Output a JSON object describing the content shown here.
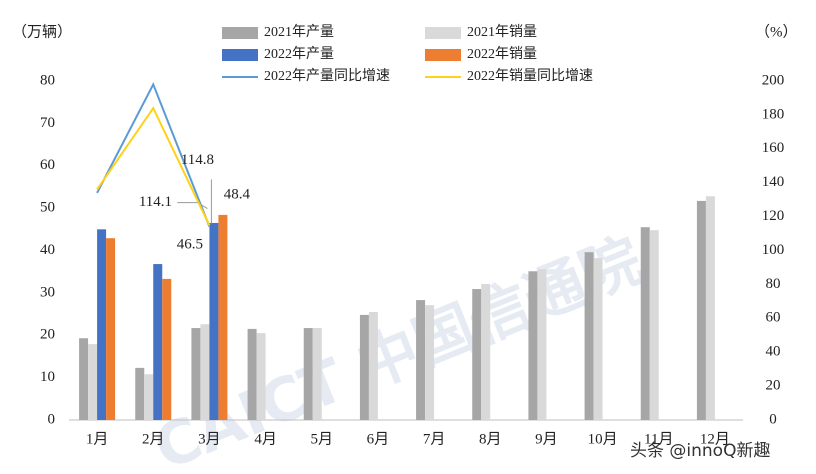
{
  "chart_data": {
    "type": "bar",
    "y_axis_label": "（万辆）",
    "y2_axis_label": "（%）",
    "categories": [
      "1月",
      "2月",
      "3月",
      "4月",
      "5月",
      "6月",
      "7月",
      "8月",
      "9月",
      "10月",
      "11月",
      "12月"
    ],
    "series": [
      {
        "name": "2021年产量",
        "color": "#a6a6a6",
        "values": [
          19.3,
          12.3,
          21.7,
          21.5,
          21.7,
          24.8,
          28.3,
          30.9,
          35.1,
          39.6,
          45.5,
          51.7
        ]
      },
      {
        "name": "2021年销量",
        "color": "#d9d9d9",
        "values": [
          17.9,
          10.8,
          22.6,
          20.5,
          21.7,
          25.5,
          27.1,
          32.1,
          35.6,
          38.2,
          44.8,
          52.8
        ]
      },
      {
        "name": "2022年产量",
        "color": "#4472c4",
        "values": [
          45.0,
          36.8,
          46.5,
          null,
          null,
          null,
          null,
          null,
          null,
          null,
          null,
          null
        ],
        "labeled": [
          2
        ]
      },
      {
        "name": "2022年销量",
        "color": "#ed7d31",
        "values": [
          42.9,
          33.3,
          48.4,
          null,
          null,
          null,
          null,
          null,
          null,
          null,
          null,
          null
        ],
        "labeled": [
          2
        ]
      },
      {
        "name": "2022年产量同比增速",
        "type": "line",
        "axis": "y2",
        "color": "#5b9bd5",
        "values": [
          134,
          198,
          114.1,
          null,
          null,
          null,
          null,
          null,
          null,
          null,
          null,
          null
        ],
        "labeled": [
          2
        ]
      },
      {
        "name": "2022年销量同比增速",
        "type": "line",
        "axis": "y2",
        "color": "#ffd11a",
        "values": [
          136,
          184,
          114.8,
          null,
          null,
          null,
          null,
          null,
          null,
          null,
          null,
          null
        ],
        "labeled": [
          2
        ]
      }
    ],
    "ylim": [
      0,
      80
    ],
    "yticks": [
      0,
      10,
      20,
      30,
      40,
      50,
      60,
      70,
      80
    ],
    "y2lim": [
      0,
      200
    ],
    "y2ticks": [
      0,
      20,
      40,
      60,
      80,
      100,
      120,
      140,
      160,
      180,
      200
    ],
    "watermark": "CAICT 中国信通院",
    "source_watermark": "头条 @innoQ新趣"
  }
}
